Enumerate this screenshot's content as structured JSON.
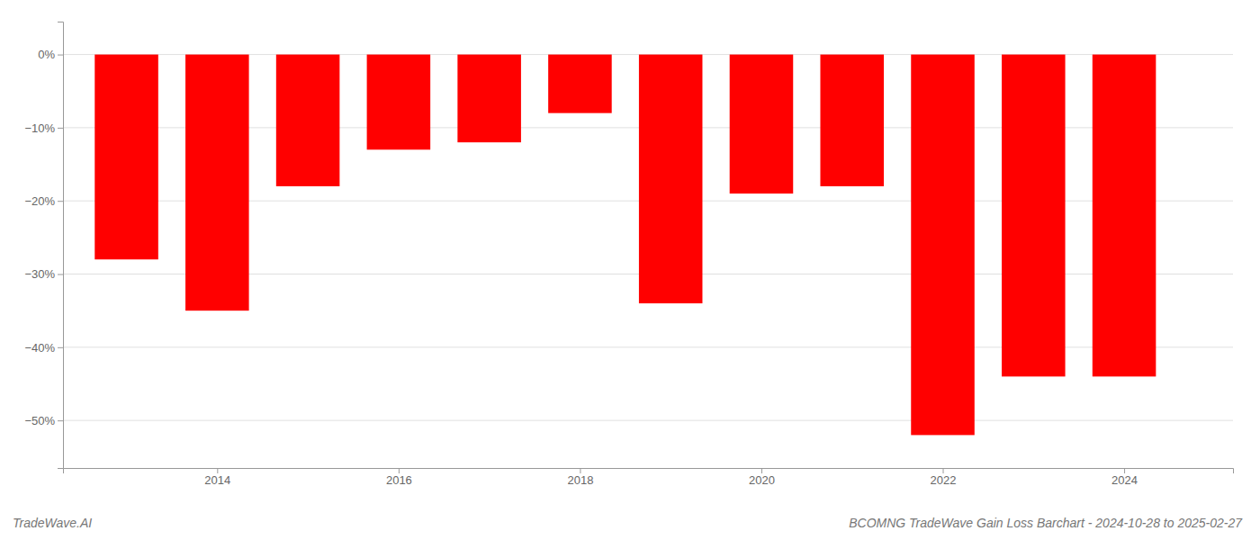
{
  "chart_data": {
    "type": "bar",
    "title": "BCOMNG TradeWave Gain Loss Barchart - 2024-10-28 to 2025-02-27",
    "annotations": [
      "TradeWave.AI"
    ],
    "x": [
      2013,
      2014,
      2015,
      2016,
      2017,
      2018,
      2019,
      2020,
      2021,
      2022,
      2023,
      2024
    ],
    "values": [
      -0.28,
      -0.35,
      -0.18,
      -0.13,
      -0.12,
      -0.08,
      -0.34,
      -0.19,
      -0.18,
      -0.52,
      -0.44,
      -0.44
    ],
    "color": "#ff0000",
    "xlim": [
      2012.3,
      2025.2
    ],
    "xticks": [
      2014,
      2016,
      2018,
      2020,
      2022,
      2024
    ],
    "ylim": [
      -0.565,
      0.045
    ],
    "yticks": [
      {
        "value": 0.0,
        "label": "0%"
      },
      {
        "value": -0.1,
        "label": "−10%"
      },
      {
        "value": -0.2,
        "label": "−20%"
      },
      {
        "value": -0.3,
        "label": "−30%"
      },
      {
        "value": -0.4,
        "label": "−40%"
      },
      {
        "value": -0.5,
        "label": "−50%"
      }
    ],
    "grid": true
  }
}
